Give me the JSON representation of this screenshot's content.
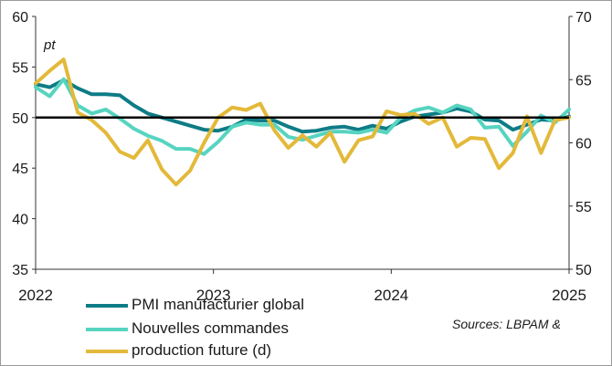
{
  "chart_data": {
    "type": "line",
    "unit_label": "pt",
    "source": "Sources: LBPAM &",
    "x_labels": [
      "2022",
      "2023",
      "2024",
      "2025"
    ],
    "x_range": [
      2022,
      2025
    ],
    "y_left": {
      "min": 35,
      "max": 60,
      "ticks": [
        35,
        40,
        45,
        50,
        55,
        60
      ]
    },
    "y_right": {
      "min": 50,
      "max": 70,
      "ticks": [
        50,
        55,
        60,
        65,
        70
      ]
    },
    "reference_line": 50,
    "series": [
      {
        "name": "PMI manufacturier global",
        "axis": "left",
        "color": "#0e7c86",
        "values": [
          53.3,
          53.0,
          53.7,
          52.9,
          52.3,
          52.3,
          52.2,
          51.2,
          50.4,
          50.0,
          49.6,
          49.2,
          48.8,
          48.7,
          49.1,
          49.8,
          49.7,
          49.7,
          49.1,
          48.6,
          48.7,
          49.0,
          49.1,
          48.8,
          49.2,
          48.9,
          49.6,
          50.1,
          50.3,
          50.5,
          50.9,
          50.6,
          49.8,
          49.7,
          48.8,
          49.3,
          49.8,
          49.7,
          50.1
        ]
      },
      {
        "name": "Nouvelles commandes",
        "axis": "left",
        "color": "#56d4c0",
        "values": [
          53.0,
          52.1,
          53.8,
          51.2,
          50.4,
          50.8,
          49.9,
          48.9,
          48.2,
          47.7,
          46.9,
          46.9,
          46.4,
          47.6,
          49.1,
          49.5,
          49.3,
          49.3,
          48.1,
          47.8,
          48.2,
          48.6,
          48.6,
          48.5,
          48.8,
          48.5,
          50.0,
          50.7,
          51.0,
          50.5,
          51.2,
          50.8,
          49.0,
          49.1,
          47.2,
          48.6,
          50.2,
          49.5,
          50.8
        ]
      },
      {
        "name": "production future (d)",
        "axis": "right",
        "color": "#e3b93a",
        "values": [
          64.7,
          65.7,
          66.6,
          62.4,
          61.8,
          60.8,
          59.3,
          58.8,
          60.2,
          57.9,
          56.7,
          57.8,
          60.0,
          62.0,
          62.8,
          62.6,
          63.1,
          61.0,
          59.6,
          60.6,
          59.7,
          60.8,
          58.5,
          60.2,
          60.5,
          62.5,
          62.2,
          62.3,
          61.5,
          62.0,
          59.7,
          60.4,
          60.3,
          58.0,
          59.2,
          62.1,
          59.2,
          61.8,
          62.0
        ]
      }
    ]
  }
}
